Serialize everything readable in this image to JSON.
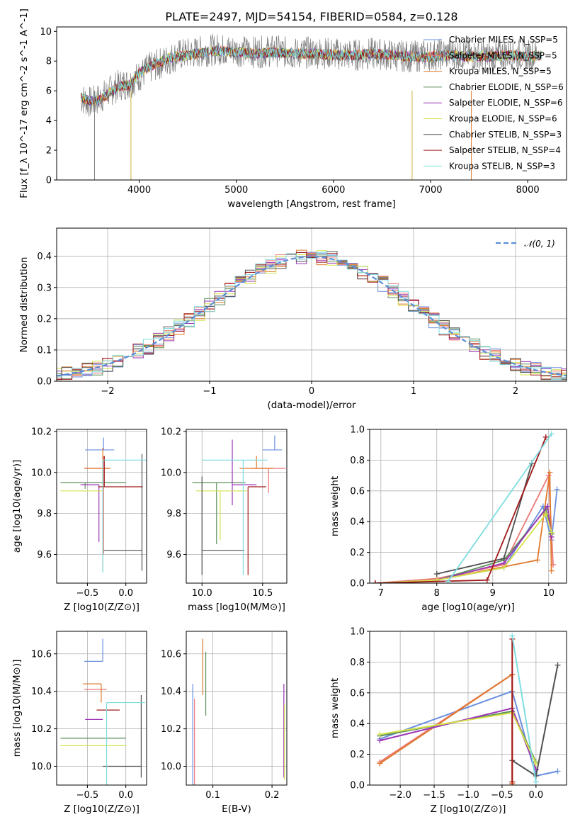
{
  "chart_data": [
    {
      "type": "line",
      "title": "PLATE=2497, MJD=54154, FIBERID=0584, z=0.128",
      "xlabel": "wavelength [Angstrom, rest frame]",
      "ylabel": "Flux [f_λ 10^-17 erg cm^-2 s^-1 A^-1]",
      "xlim": [
        3150,
        8400
      ],
      "ylim": [
        0,
        10.3
      ],
      "xticks": [
        "4000",
        "5000",
        "6000",
        "7000",
        "8000"
      ],
      "yticks": [
        "0",
        "2",
        "4",
        "6",
        "8",
        "10"
      ],
      "legend_position": "right",
      "observed_spectrum": {
        "color": "#808080",
        "x": [
          3400,
          3500,
          3600,
          3700,
          3800,
          3900,
          4000,
          4100,
          4200,
          4300,
          4400,
          4600,
          4800,
          5000,
          5200,
          5400,
          5600,
          5800,
          6000,
          6200,
          6400,
          6600,
          6800,
          7000,
          7200,
          7400,
          7600,
          7800,
          8000,
          8100
        ],
        "y": [
          5.5,
          5.2,
          5.5,
          6.0,
          6.4,
          6.5,
          7.0,
          7.5,
          7.8,
          8.1,
          8.4,
          8.6,
          8.8,
          8.7,
          8.6,
          8.7,
          8.5,
          8.6,
          8.5,
          8.4,
          8.5,
          8.4,
          8.3,
          8.4,
          8.5,
          8.4,
          8.3,
          8.5,
          8.4,
          8.5
        ]
      },
      "series": [
        {
          "name": "Chabrier MILES, N_SSP=5",
          "color": "#6a8fe0"
        },
        {
          "name": "Salpeter MILES, N_SSP=5",
          "color": "#ee7777"
        },
        {
          "name": "Kroupa MILES, N_SSP=5",
          "color": "#e07a2e"
        },
        {
          "name": "Chabrier ELODIE, N_SSP=6",
          "color": "#5c8f5c"
        },
        {
          "name": "Salpeter ELODIE, N_SSP=6",
          "color": "#9b35b5"
        },
        {
          "name": "Kroupa ELODIE, N_SSP=6",
          "color": "#d6e24a"
        },
        {
          "name": "Chabrier STELIB, N_SSP=3",
          "color": "#505050"
        },
        {
          "name": "Salpeter STELIB, N_SSP=4",
          "color": "#a01818"
        },
        {
          "name": "Kroupa STELIB, N_SSP=3",
          "color": "#7fdde0"
        }
      ],
      "model_x": [
        3400,
        3500,
        3600,
        3700,
        3800,
        3900,
        4000,
        4100,
        4200,
        4300,
        4400,
        4600,
        4800,
        5000,
        5200,
        5400,
        5600,
        5800,
        6000,
        6200,
        6400,
        6600,
        6800,
        7000,
        7200,
        7400,
        7600,
        7800,
        8000,
        8150
      ],
      "model_y": [
        5.6,
        5.3,
        5.4,
        5.9,
        6.3,
        6.4,
        7.2,
        7.6,
        7.9,
        8.2,
        8.3,
        8.5,
        8.7,
        8.6,
        8.5,
        8.6,
        8.5,
        8.5,
        8.4,
        8.4,
        8.5,
        8.4,
        8.3,
        8.3,
        8.4,
        8.3,
        8.3,
        8.4,
        8.3,
        8.4
      ]
    },
    {
      "type": "bar",
      "xlabel": "(data-model)/error",
      "ylabel": "Normed distribution",
      "xlim": [
        -2.5,
        2.5
      ],
      "ylim": [
        0,
        0.49
      ],
      "xticks": [
        "−2",
        "−1",
        "0",
        "1",
        "2"
      ],
      "yticks": [
        "0.0",
        "0.1",
        "0.2",
        "0.3",
        "0.4"
      ],
      "legend": "𝒩(0, 1)",
      "curve_color": "#5b8ed6",
      "bin_width": 0.1,
      "histograms": "one step histogram per fit, approximately following the unit normal density"
    },
    {
      "type": "scatter",
      "xlabel": "Z [log10(Z/Z⊙)]",
      "ylabel": "age  [log10(age/yr)]",
      "xlim": [
        -0.9,
        0.27
      ],
      "ylim": [
        9.46,
        10.21
      ],
      "xticks": [
        "−0.5",
        "0.0"
      ],
      "yticks": [
        "9.6",
        "9.8",
        "10.0",
        "10.2"
      ],
      "points": [
        {
          "x": -0.29,
          "y": 10.11,
          "xerr": [
            0.24,
            0.14
          ],
          "yerr": [
            0.0,
            0.06
          ]
        },
        {
          "x": -0.29,
          "y": 10.02,
          "xerr": [
            0.25,
            0.07
          ],
          "yerr": [
            0.42,
            0.06
          ]
        },
        {
          "x": -0.3,
          "y": 10.02,
          "xerr": [
            0.24,
            0.1
          ],
          "yerr": [
            0.5,
            0.1
          ]
        },
        {
          "x": -0.53,
          "y": 9.95,
          "xerr": [
            0.32,
            0.53
          ],
          "yerr": [
            0.03,
            0.0
          ]
        },
        {
          "x": -0.35,
          "y": 9.94,
          "xerr": [
            0.24,
            0.0
          ],
          "yerr": [
            0.28,
            0.0
          ]
        },
        {
          "x": -0.55,
          "y": 9.91,
          "xerr": [
            0.3,
            0.24
          ],
          "yerr": [
            0.0,
            0.0
          ]
        },
        {
          "x": 0.21,
          "y": 9.62,
          "xerr": [
            0.5,
            0.0
          ],
          "yerr": [
            0.1,
            0.47
          ]
        },
        {
          "x": -0.28,
          "y": 9.93,
          "xerr": [
            0.08,
            0.5
          ],
          "yerr": [
            0.0,
            0.15
          ]
        },
        {
          "x": -0.3,
          "y": 10.06,
          "xerr": [
            0.0,
            0.58
          ],
          "yerr": [
            0.55,
            0.0
          ]
        }
      ]
    },
    {
      "type": "scatter",
      "xlabel": "mass [log10(M/M⊙)]",
      "ylabel": "",
      "xlim": [
        9.87,
        10.7
      ],
      "ylim": [
        9.46,
        10.21
      ],
      "xticks": [
        "10.0",
        "10.5"
      ],
      "yticks": [
        "9.6",
        "9.8",
        "10.0",
        "10.2"
      ],
      "points": [
        {
          "x": 10.6,
          "y": 10.11,
          "xerr": [
            0.1,
            0.06
          ],
          "yerr": [
            0.0,
            0.07
          ]
        },
        {
          "x": 10.55,
          "y": 10.02,
          "xerr": [
            0.14,
            0.14
          ],
          "yerr": [
            0.12,
            0.0
          ]
        },
        {
          "x": 10.45,
          "y": 10.02,
          "xerr": [
            0.14,
            0.14
          ],
          "yerr": [
            0.0,
            0.06
          ]
        },
        {
          "x": 10.12,
          "y": 9.95,
          "xerr": [
            0.2,
            0.24
          ],
          "yerr": [
            0.3,
            0.0
          ]
        },
        {
          "x": 10.25,
          "y": 9.94,
          "xerr": [
            0.0,
            0.2
          ],
          "yerr": [
            0.1,
            0.22
          ]
        },
        {
          "x": 10.15,
          "y": 9.91,
          "xerr": [
            0.2,
            0.22
          ],
          "yerr": [
            0.24,
            0.0
          ]
        },
        {
          "x": 10.0,
          "y": 9.62,
          "xerr": [
            0.0,
            0.35
          ],
          "yerr": [
            0.12,
            0.36
          ]
        },
        {
          "x": 10.38,
          "y": 9.93,
          "xerr": [
            0.0,
            0.15
          ],
          "yerr": [
            0.43,
            0.0
          ]
        },
        {
          "x": 10.34,
          "y": 10.06,
          "xerr": [
            0.34,
            0.2
          ],
          "yerr": [
            0.56,
            0.0
          ]
        }
      ]
    },
    {
      "type": "line",
      "xlabel": "age  [log10(age/yr)]",
      "ylabel": "mass weight",
      "xlim": [
        6.8,
        10.32
      ],
      "ylim": [
        0,
        1
      ],
      "xticks": [
        "7",
        "8",
        "9",
        "10"
      ],
      "yticks": [
        "0.0",
        "0.2",
        "0.4",
        "0.6",
        "0.8",
        "1.0"
      ],
      "series": [
        {
          "color": "#6a8fe0",
          "x": [
            6.9,
            8.0,
            9.2,
            9.9,
            10.05,
            10.15
          ],
          "y": [
            0.0,
            0.02,
            0.1,
            0.5,
            0.28,
            0.61
          ]
        },
        {
          "color": "#ee7777",
          "x": [
            6.9,
            8.0,
            9.2,
            10.0,
            10.08
          ],
          "y": [
            0.0,
            0.03,
            0.12,
            0.7,
            0.12
          ]
        },
        {
          "color": "#e07a2e",
          "x": [
            6.9,
            8.0,
            9.8,
            10.02,
            10.05
          ],
          "y": [
            0.0,
            0.02,
            0.15,
            0.72,
            0.08
          ]
        },
        {
          "color": "#5c8f5c",
          "x": [
            6.9,
            8.0,
            9.2,
            9.95,
            10.05
          ],
          "y": [
            0.0,
            0.02,
            0.15,
            0.48,
            0.32
          ]
        },
        {
          "color": "#9b35b5",
          "x": [
            6.9,
            8.0,
            9.2,
            9.98,
            10.05
          ],
          "y": [
            0.0,
            0.02,
            0.13,
            0.5,
            0.3
          ]
        },
        {
          "color": "#d6e24a",
          "x": [
            6.9,
            8.0,
            9.2,
            9.95,
            10.05
          ],
          "y": [
            0.0,
            0.02,
            0.1,
            0.45,
            0.33
          ]
        },
        {
          "color": "#505050",
          "x": [
            8.0,
            9.2,
            9.7
          ],
          "y": [
            0.06,
            0.16,
            0.78
          ]
        },
        {
          "color": "#a01818",
          "x": [
            6.9,
            8.9,
            9.95
          ],
          "y": [
            0.0,
            0.02,
            0.95
          ]
        },
        {
          "color": "#7fdde0",
          "x": [
            8.2,
            10.05
          ],
          "y": [
            0.01,
            0.97
          ]
        }
      ]
    },
    {
      "type": "scatter",
      "xlabel": "Z [log10(Z/Z⊙)]",
      "ylabel": "mass [log10(M/M⊙)]",
      "xlim": [
        -0.9,
        0.27
      ],
      "ylim": [
        9.9,
        10.72
      ],
      "xticks": [
        "−0.5",
        "0.0"
      ],
      "yticks": [
        "10.0",
        "10.2",
        "10.4",
        "10.6"
      ],
      "points": [
        {
          "x": -0.3,
          "y": 10.56,
          "xerr": [
            0.24,
            0.0
          ],
          "yerr": [
            0.0,
            0.12
          ]
        },
        {
          "x": -0.3,
          "y": 10.41,
          "xerr": [
            0.24,
            0.05
          ],
          "yerr": [
            0.0,
            0.0
          ]
        },
        {
          "x": -0.32,
          "y": 10.44,
          "xerr": [
            0.24,
            0.0
          ],
          "yerr": [
            0.1,
            0.0
          ]
        },
        {
          "x": -0.5,
          "y": 10.15,
          "xerr": [
            0.35,
            0.5
          ],
          "yerr": [
            0.0,
            0.0
          ]
        },
        {
          "x": -0.4,
          "y": 10.25,
          "xerr": [
            0.13,
            0.1
          ],
          "yerr": [
            0.0,
            0.0
          ]
        },
        {
          "x": -0.55,
          "y": 10.11,
          "xerr": [
            0.3,
            0.55
          ],
          "yerr": [
            0.0,
            0.0
          ]
        },
        {
          "x": 0.2,
          "y": 10.0,
          "xerr": [
            0.5,
            0.0
          ],
          "yerr": [
            0.06,
            0.38
          ]
        },
        {
          "x": -0.28,
          "y": 10.3,
          "xerr": [
            0.1,
            0.2
          ],
          "yerr": [
            0.0,
            0.0
          ]
        },
        {
          "x": -0.25,
          "y": 10.34,
          "xerr": [
            0.0,
            0.5
          ],
          "yerr": [
            0.44,
            0.0
          ]
        }
      ]
    },
    {
      "type": "scatter",
      "xlabel": "E(B-V)",
      "ylabel": "",
      "xlim": [
        0.055,
        0.225
      ],
      "ylim": [
        9.9,
        10.72
      ],
      "xticks": [
        "0.1",
        "0.2"
      ],
      "yticks": [
        "10.0",
        "10.2",
        "10.4",
        "10.6"
      ],
      "points": [
        {
          "x": 0.066,
          "y": 10.3,
          "yerr": [
            0.4,
            0.14
          ]
        },
        {
          "x": 0.069,
          "y": 10.1,
          "yerr": [
            0.2,
            0.26
          ]
        },
        {
          "x": 0.083,
          "y": 10.5,
          "yerr": [
            0.12,
            0.18
          ]
        },
        {
          "x": 0.088,
          "y": 10.45,
          "yerr": [
            0.18,
            0.16
          ]
        },
        {
          "x": 0.22,
          "y": 10.2,
          "yerr": [
            0.26,
            0.24
          ]
        },
        {
          "x": 0.221,
          "y": 10.15,
          "yerr": [
            0.22,
            0.18
          ]
        }
      ]
    },
    {
      "type": "line",
      "xlabel": "Z [log10(Z/Z⊙)]",
      "ylabel": "mass weight",
      "xlim": [
        -2.45,
        0.45
      ],
      "ylim": [
        0,
        1
      ],
      "xticks": [
        "−2.0",
        "−1.5",
        "−1.0",
        "−0.5",
        "0.0"
      ],
      "yticks": [
        "0.0",
        "0.2",
        "0.4",
        "0.6",
        "0.8",
        "1.0"
      ],
      "series": [
        {
          "color": "#6a8fe0",
          "x": [
            -2.3,
            -0.35,
            0.0,
            0.32
          ],
          "y": [
            0.3,
            0.61,
            0.06,
            0.09
          ]
        },
        {
          "color": "#ee7777",
          "x": [
            -2.3,
            -0.35,
            -0.35
          ],
          "y": [
            0.15,
            0.72,
            0.0
          ]
        },
        {
          "color": "#e07a2e",
          "x": [
            -2.3,
            -0.35,
            -0.35
          ],
          "y": [
            0.14,
            0.72,
            0.01
          ]
        },
        {
          "color": "#5c8f5c",
          "x": [
            -2.3,
            -0.35,
            0.0
          ],
          "y": [
            0.32,
            0.48,
            0.15
          ]
        },
        {
          "color": "#9b35b5",
          "x": [
            -2.3,
            -0.35,
            0.0
          ],
          "y": [
            0.29,
            0.5,
            0.1
          ]
        },
        {
          "color": "#d6e24a",
          "x": [
            -2.3,
            -0.35,
            0.0
          ],
          "y": [
            0.33,
            0.47,
            0.14
          ]
        },
        {
          "color": "#505050",
          "x": [
            -0.35,
            0.0,
            0.32
          ],
          "y": [
            0.16,
            0.06,
            0.78
          ]
        },
        {
          "color": "#a01818",
          "x": [
            -0.35,
            -0.35
          ],
          "y": [
            0.02,
            0.95
          ]
        },
        {
          "color": "#7fdde0",
          "x": [
            -0.35,
            0.0
          ],
          "y": [
            0.97,
            0.02
          ]
        }
      ]
    }
  ]
}
